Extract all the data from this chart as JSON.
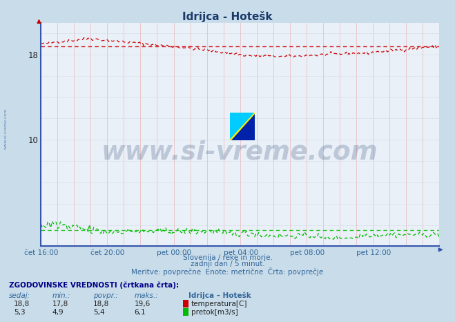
{
  "title": "Idrijca - Hotešk",
  "fig_bg_color": "#c8dcea",
  "plot_bg_color": "#eaf0f8",
  "temp_color": "#cc0000",
  "flow_color": "#00bb00",
  "ylim": [
    0,
    21
  ],
  "yticks": [
    10,
    18
  ],
  "xlim": [
    0,
    287
  ],
  "xtick_positions": [
    0,
    48,
    96,
    144,
    192,
    240
  ],
  "xtick_labels": [
    "čet 16:00",
    "čet 20:00",
    "pet 00:00",
    "pet 04:00",
    "pet 08:00",
    "pet 12:00"
  ],
  "n_points": 288,
  "temp_avg_display": 18.8,
  "flow_avg_display": 1.5,
  "subtitle1": "Slovenija / reke in morje.",
  "subtitle2": "zadnji dan / 5 minut.",
  "subtitle3": "Meritve: povprečne  Enote: metrične  Črta: povprečje",
  "table_header": "ZGODOVINSKE VREDNOSTI (črtkana črta):",
  "col_headers": [
    "sedaj:",
    "min.:",
    "povpr.:",
    "maks.:",
    "Idrijca – Hotešk"
  ],
  "row1_vals": [
    "18,8",
    "17,8",
    "18,8",
    "19,6"
  ],
  "row1_label": "temperatura[C]",
  "row2_vals": [
    "5,3",
    "4,9",
    "5,4",
    "6,1"
  ],
  "row2_label": "pretok[m3/s]",
  "watermark_text": "www.si-vreme.com",
  "watermark_color": "#1a3a6a",
  "sidebar_text": "www.si-vreme.com"
}
